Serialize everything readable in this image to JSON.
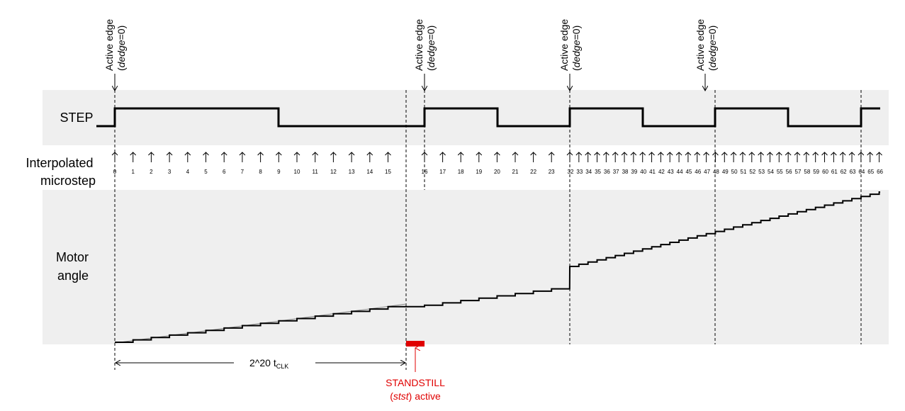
{
  "labels": {
    "step": "STEP",
    "interp_line1": "Interpolated",
    "interp_line2": "microstep",
    "motor_line1": "Motor",
    "motor_line2": "angle",
    "active_edge": "Active edge",
    "dedge_open": "(",
    "dedge_var": "dedge",
    "dedge_close": "=0)",
    "time_base": "2^20 t",
    "time_sub": "CLK",
    "standstill_line1": "STANDSTILL",
    "standstill_open": "(",
    "standstill_var": "stst",
    "standstill_close": ") active"
  },
  "microstep_numbers": [
    "0",
    "1",
    "2",
    "3",
    "4",
    "5",
    "6",
    "7",
    "8",
    "9",
    "10",
    "11",
    "12",
    "13",
    "14",
    "15",
    "16",
    "17",
    "18",
    "19",
    "20",
    "21",
    "22",
    "23",
    "32",
    "33",
    "34",
    "35",
    "36",
    "37",
    "38",
    "39",
    "40",
    "41",
    "42",
    "43",
    "44",
    "45",
    "46",
    "47",
    "48",
    "49",
    "50",
    "51",
    "52",
    "53",
    "54",
    "55",
    "56",
    "57",
    "58",
    "59",
    "60",
    "61",
    "62",
    "63",
    "64",
    "65",
    "66"
  ],
  "colors": {
    "band": "#efefef",
    "signal": "#000000",
    "standstill": "#e00000"
  }
}
